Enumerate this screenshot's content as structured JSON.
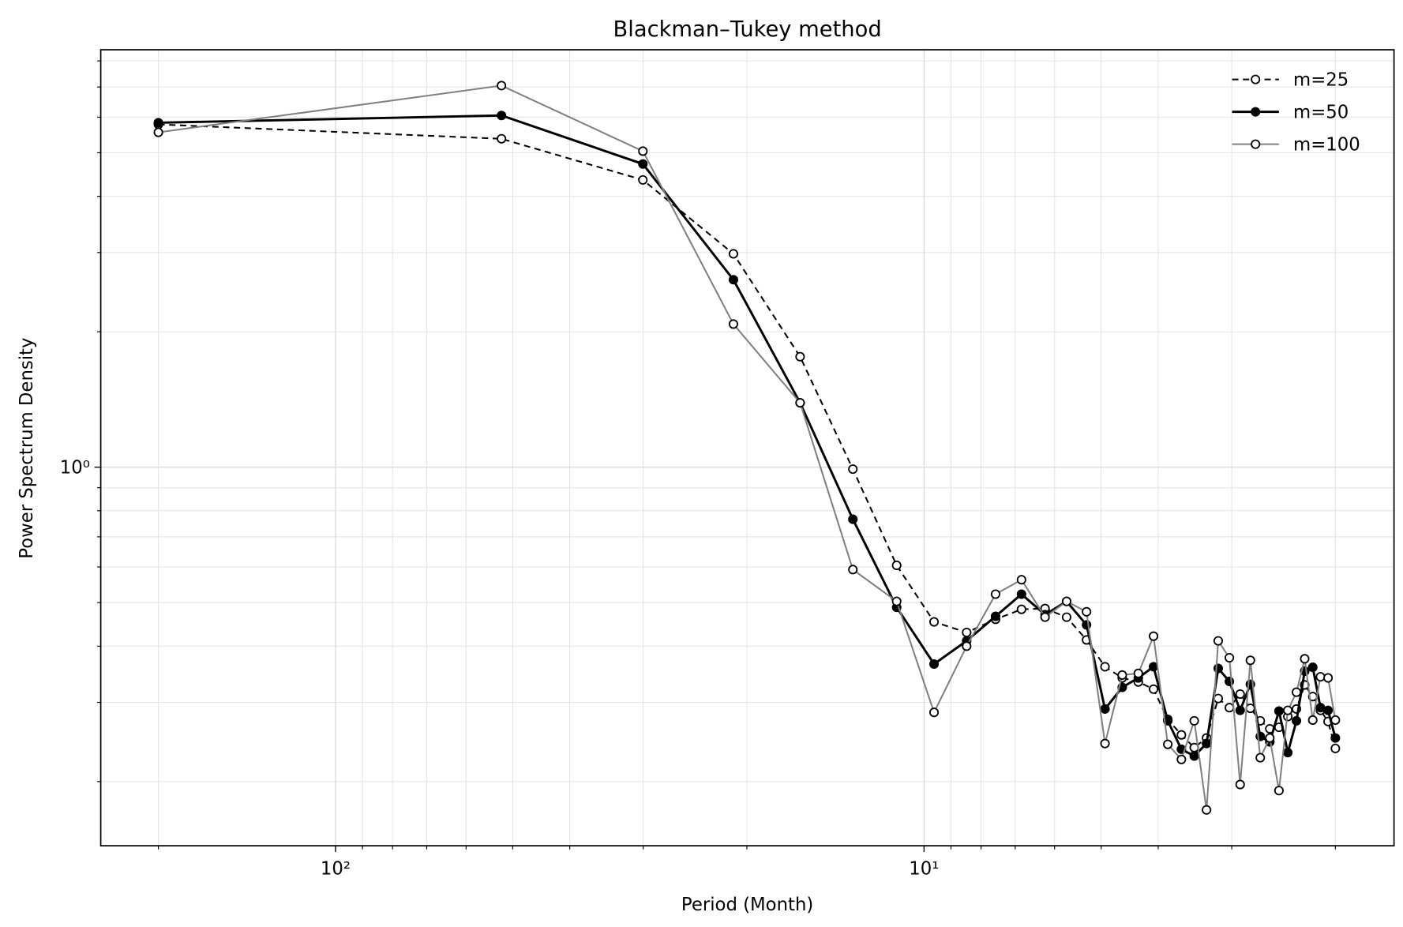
{
  "chart_data": {
    "type": "line",
    "title": "Blackman–Tukey method",
    "x_label": "Period (Month)",
    "y_label": "Power Spectrum Density",
    "x_scale": "log",
    "y_scale": "log",
    "grid": true,
    "legend_position": "upper right",
    "x": [
      200,
      52.24,
      30.04,
      21.08,
      16.24,
      13.21,
      11.13,
      9.615,
      8.464,
      7.559,
      6.829,
      6.228,
      5.724,
      5.295,
      4.926,
      4.605,
      4.324,
      4.074,
      3.853,
      3.653,
      3.474,
      3.311,
      3.163,
      3.028,
      2.903,
      2.789,
      2.683,
      2.585,
      2.494,
      2.409,
      2.329,
      2.255,
      2.185,
      2.12,
      2.058,
      2.0
    ],
    "xlim": [
      250.6,
      1.59
    ],
    "ylim": [
      0.144,
      8.47
    ],
    "xticks": [
      {
        "value": 100,
        "label": "10²"
      },
      {
        "value": 10,
        "label": "10¹"
      }
    ],
    "yticks": [
      {
        "value": 1,
        "label": "10⁰"
      }
    ],
    "xminor_ticks": [
      200,
      90,
      80,
      70,
      60,
      50,
      40,
      30,
      20,
      9,
      8,
      7,
      6,
      5,
      4,
      3,
      2
    ],
    "yminor_ticks": [
      0.2,
      0.3,
      0.4,
      0.5,
      0.6,
      0.7,
      0.8,
      0.9,
      2,
      3,
      4,
      5,
      6,
      7,
      8
    ],
    "series": [
      {
        "name": "m=25",
        "color": "#000000",
        "line_style": "dashed",
        "marker_fill": "#ffffff",
        "values": [
          5.78,
          5.37,
          4.35,
          2.98,
          1.76,
          0.99,
          0.605,
          0.453,
          0.429,
          0.459,
          0.483,
          0.485,
          0.464,
          0.413,
          0.36,
          0.34,
          0.333,
          0.321,
          0.275,
          0.254,
          0.238,
          0.25,
          0.306,
          0.292,
          0.313,
          0.291,
          0.273,
          0.262,
          0.264,
          0.279,
          0.29,
          0.328,
          0.309,
          0.288,
          0.272,
          0.237
        ]
      },
      {
        "name": "m=50",
        "color": "#000000",
        "line_style": "solid",
        "marker_fill": "#000000",
        "values": [
          5.83,
          6.05,
          4.72,
          2.61,
          1.39,
          0.766,
          0.488,
          0.365,
          0.411,
          0.466,
          0.522,
          0.47,
          0.503,
          0.446,
          0.29,
          0.324,
          0.34,
          0.36,
          0.273,
          0.236,
          0.228,
          0.243,
          0.357,
          0.334,
          0.288,
          0.329,
          0.252,
          0.245,
          0.287,
          0.232,
          0.273,
          0.352,
          0.359,
          0.292,
          0.288,
          0.25
        ]
      },
      {
        "name": "m=100",
        "color": "#808080",
        "line_style": "solid",
        "marker_fill": "#ffffff",
        "values": [
          5.55,
          7.05,
          5.04,
          2.08,
          1.39,
          0.592,
          0.503,
          0.285,
          0.4,
          0.522,
          0.562,
          0.464,
          0.503,
          0.477,
          0.243,
          0.345,
          0.348,
          0.421,
          0.242,
          0.224,
          0.273,
          0.173,
          0.411,
          0.377,
          0.197,
          0.372,
          0.226,
          0.25,
          0.191,
          0.288,
          0.316,
          0.375,
          0.274,
          0.342,
          0.34,
          0.274
        ]
      }
    ]
  }
}
